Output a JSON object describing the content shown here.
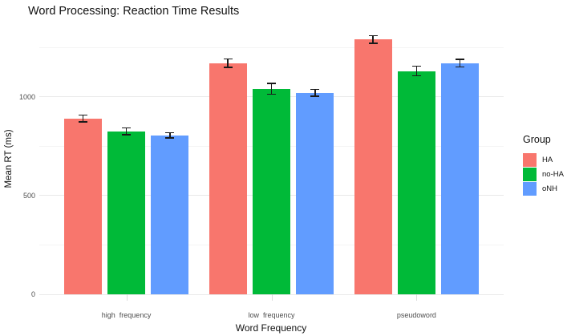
{
  "chart_data": {
    "type": "bar",
    "title": "Word Processing: Reaction Time Results",
    "xlabel": "Word Frequency",
    "ylabel": "Mean RT (ms)",
    "legend_title": "Group",
    "legend_position": "right",
    "grid": true,
    "error_bars": true,
    "categories": [
      "high  frequency",
      "low  frequency",
      "pseudoword"
    ],
    "series": [
      {
        "name": "HA",
        "color": "#F8766D",
        "values": [
          890,
          1170,
          1290
        ],
        "errors": [
          18,
          22,
          20
        ]
      },
      {
        "name": "no-HA",
        "color": "#00BA38",
        "values": [
          825,
          1040,
          1130
        ],
        "errors": [
          18,
          28,
          24
        ]
      },
      {
        "name": "oNH",
        "color": "#619CFF",
        "values": [
          805,
          1020,
          1170
        ],
        "errors": [
          13,
          18,
          20
        ]
      }
    ],
    "y_ticks": [
      0,
      500,
      1000
    ],
    "y_minor_ticks": [
      250,
      750,
      1250
    ],
    "ylim": [
      0,
      1372
    ],
    "colors": {
      "grid_major": "#e9e9e9",
      "grid_minor": "#f4f4f4",
      "error_bar": "#1a1a1a",
      "tick_text": "#4d4d4d",
      "title_text": "#111111"
    }
  }
}
